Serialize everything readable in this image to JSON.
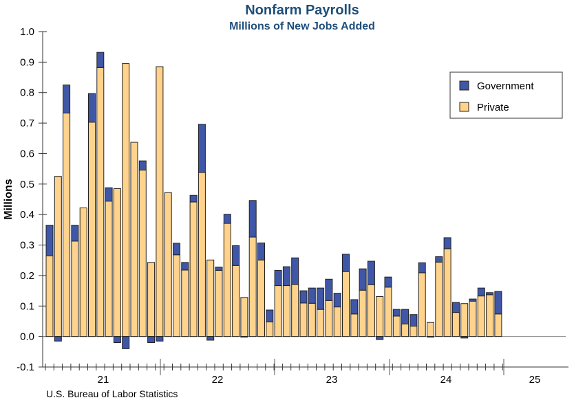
{
  "chart_data": {
    "type": "bar",
    "stacked": true,
    "title": "Nonfarm Payrolls",
    "subtitle": "Millions of New Jobs Added",
    "ylabel": "Millions",
    "xlabel": "",
    "source": "U.S. Bureau of Labor Statistics",
    "ylim": [
      -0.1,
      1.0
    ],
    "yticks": [
      "1.0",
      "0.9",
      "0.8",
      "0.7",
      "0.6",
      "0.5",
      "0.4",
      "0.3",
      "0.2",
      "0.1",
      "0.0",
      "-0.1"
    ],
    "year_labels": [
      "21",
      "22",
      "23",
      "24",
      "25"
    ],
    "legend": {
      "position": "top-right",
      "entries": [
        "Government",
        "Private"
      ]
    },
    "colors": {
      "Government": "#3f57a6",
      "Private": "#ffd38c"
    },
    "series": [
      {
        "name": "Private",
        "values": [
          0.265,
          0.525,
          0.733,
          0.313,
          0.422,
          0.703,
          0.882,
          0.444,
          0.485,
          0.895,
          0.637,
          0.546,
          0.243,
          0.885,
          0.472,
          0.268,
          0.218,
          0.441,
          0.538,
          0.251,
          0.217,
          0.371,
          0.233,
          0.128,
          0.326,
          0.251,
          0.048,
          0.167,
          0.167,
          0.171,
          0.11,
          0.109,
          0.089,
          0.118,
          0.097,
          0.213,
          0.074,
          0.152,
          0.17,
          0.131,
          0.162,
          0.067,
          0.041,
          0.034,
          0.209,
          0.046,
          0.244,
          0.288,
          0.079,
          0.108,
          0.116,
          0.133,
          0.137,
          0.074
        ]
      },
      {
        "name": "Government",
        "values": [
          0.1,
          -0.015,
          0.092,
          0.052,
          0,
          0.094,
          0.05,
          0.044,
          -0.02,
          -0.04,
          0,
          0.03,
          -0.02,
          -0.015,
          0,
          0.038,
          0.025,
          0.022,
          0.158,
          -0.012,
          0.011,
          0.03,
          0.065,
          -0.002,
          0.12,
          0.056,
          0.039,
          0.05,
          0.062,
          0.087,
          0.04,
          0.05,
          0.07,
          0.07,
          0.045,
          0.057,
          0.047,
          0.07,
          0.077,
          -0.01,
          0.033,
          0.022,
          0.048,
          0.038,
          0.033,
          -0.002,
          0.018,
          0.036,
          0.033,
          -0.005,
          0.007,
          0.026,
          0.007,
          0.074
        ]
      }
    ]
  }
}
